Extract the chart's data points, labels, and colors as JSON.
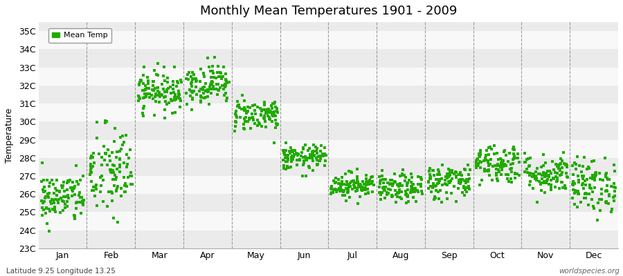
{
  "title": "Monthly Mean Temperatures 1901 - 2009",
  "ylabel": "Temperature",
  "xlabel": "",
  "subtitle_left": "Latitude 9.25 Longitude 13.25",
  "subtitle_right": "worldspecies.org",
  "dot_color": "#22aa00",
  "dot_size": 6,
  "dot_marker": "s",
  "months": [
    "Jan",
    "Feb",
    "Mar",
    "Apr",
    "May",
    "Jun",
    "Jul",
    "Aug",
    "Sep",
    "Oct",
    "Nov",
    "Dec"
  ],
  "ylim": [
    23.0,
    35.5
  ],
  "yticks": [
    23,
    24,
    25,
    26,
    27,
    28,
    29,
    30,
    31,
    32,
    33,
    34,
    35
  ],
  "ytick_labels": [
    "23C",
    "24C",
    "25C",
    "26C",
    "27C",
    "28C",
    "29C",
    "30C",
    "31C",
    "32C",
    "33C",
    "34C",
    "35C"
  ],
  "band_colors": [
    "#ebebeb",
    "#f8f8f8"
  ],
  "mean_temps": [
    25.8,
    27.2,
    31.7,
    32.1,
    30.4,
    28.0,
    26.5,
    26.3,
    26.7,
    27.7,
    27.1,
    26.5
  ],
  "std_temps": [
    0.7,
    1.3,
    0.55,
    0.55,
    0.45,
    0.35,
    0.35,
    0.4,
    0.5,
    0.55,
    0.55,
    0.75
  ],
  "n_years": 109,
  "seed": 42,
  "background_color": "#ffffff",
  "legend_label": "Mean Temp",
  "vline_color": "#777777",
  "spine_color": "#aaaaaa"
}
